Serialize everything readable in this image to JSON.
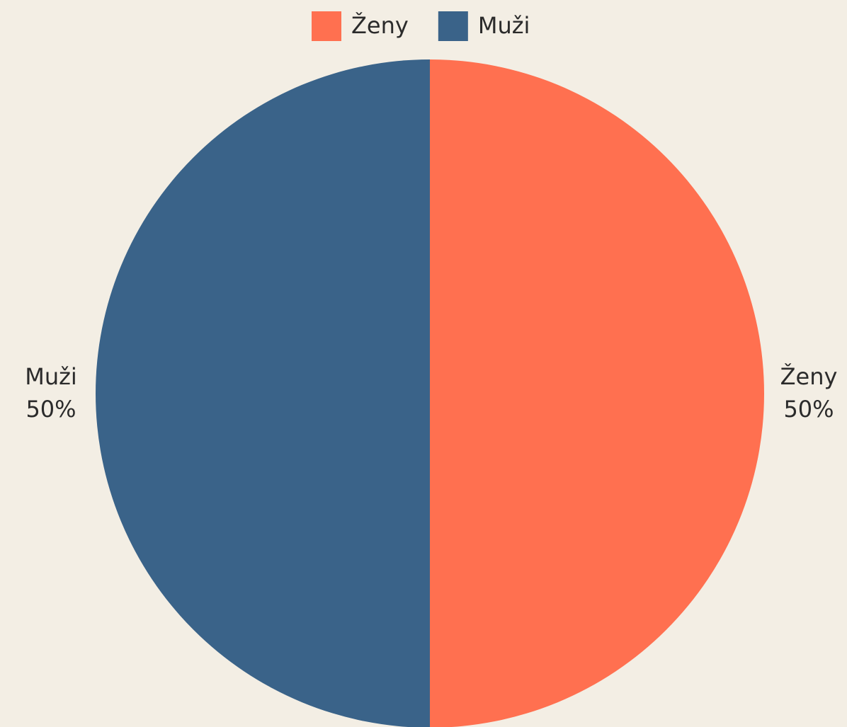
{
  "chart_data": {
    "type": "pie",
    "categories": [
      "Ženy",
      "Muži"
    ],
    "values": [
      50,
      50
    ],
    "value_labels": [
      "50%",
      "50%"
    ],
    "colors": [
      "#ff7050",
      "#3a6389"
    ],
    "legend": "top"
  }
}
